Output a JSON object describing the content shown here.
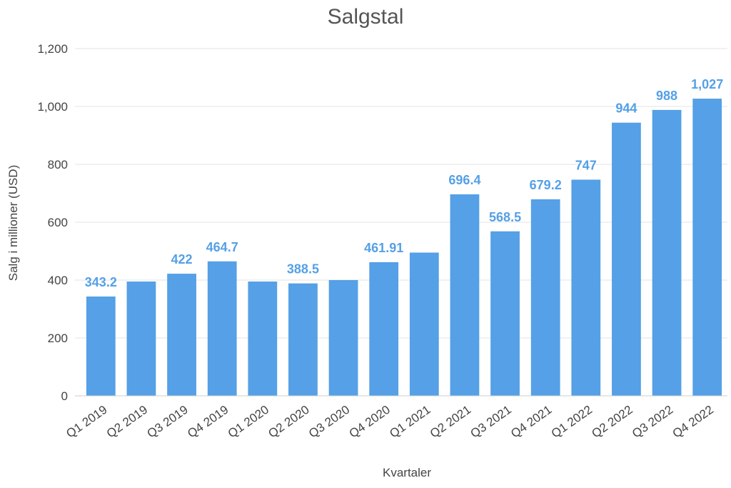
{
  "chart_data": {
    "type": "bar",
    "title": "Salgstal",
    "xlabel": "Kvartaler",
    "ylabel": "Salg i millioner (USD)",
    "ylim": [
      0,
      1200
    ],
    "yticks": [
      0,
      200,
      400,
      600,
      800,
      1000,
      1200
    ],
    "ytick_labels": [
      "0",
      "200",
      "400",
      "600",
      "800",
      "1,000",
      "1,200"
    ],
    "grid": true,
    "bar_color": "#55a0e6",
    "label_color": "#55a0e6",
    "categories": [
      "Q1 2019",
      "Q2 2019",
      "Q3 2019",
      "Q4 2019",
      "Q1 2020",
      "Q2 2020",
      "Q3 2020",
      "Q4 2020",
      "Q1 2021",
      "Q2 2021",
      "Q3 2021",
      "Q4 2021",
      "Q1 2022",
      "Q2 2022",
      "Q3 2022",
      "Q4 2022"
    ],
    "values": [
      343.2,
      395,
      422,
      464.7,
      395,
      388.5,
      400,
      461.91,
      495,
      696.4,
      568.5,
      679.2,
      747,
      944,
      988,
      1027
    ],
    "data_labels": [
      "343.2",
      "",
      "422",
      "464.7",
      "",
      "388.5",
      "",
      "461.91",
      "",
      "696.4",
      "568.5",
      "679.2",
      "747",
      "944",
      "988",
      "1,027"
    ]
  }
}
